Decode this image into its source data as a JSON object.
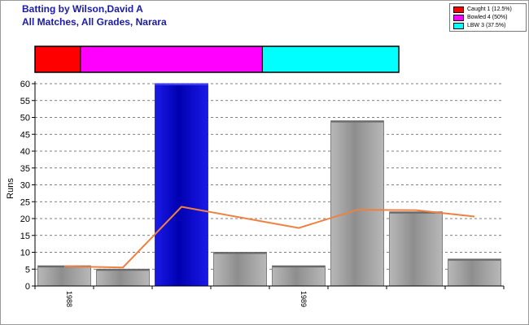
{
  "title_line1": "Batting by Wilson,David A",
  "title_line2": "All Matches, All Grades, Narara",
  "legend": [
    {
      "label": "Caught 1 (12.5%)",
      "color": "#ff0000"
    },
    {
      "label": "Bowled 4 (50%)",
      "color": "#ff00ff"
    },
    {
      "label": "LBW 3 (37.5%)",
      "color": "#00ffff"
    }
  ],
  "chart_data": [
    {
      "type": "bar",
      "title": "Batting by Wilson,David A",
      "subtitle": "All Matches, All Grades, Narara",
      "ylabel": "Runs",
      "xlabel": "",
      "ylim": [
        0,
        60
      ],
      "yticks": [
        0,
        5,
        10,
        15,
        20,
        25,
        30,
        35,
        40,
        45,
        50,
        55,
        60
      ],
      "grid": "horizontal dashed",
      "x_tick_labels": [
        {
          "index": 0,
          "label": "1988"
        },
        {
          "index": 4,
          "label": "1989"
        }
      ],
      "values": [
        6,
        5,
        60,
        10,
        6,
        49,
        22,
        8
      ],
      "bar_colors": [
        "#a8a8a8",
        "#a8a8a8",
        "#0000ff",
        "#a8a8a8",
        "#a8a8a8",
        "#a8a8a8",
        "#a8a8a8",
        "#a8a8a8"
      ],
      "highlight_index": 2,
      "line_series": {
        "color": "#f08040",
        "values": [
          5.8,
          5.5,
          23.5,
          null,
          17.2,
          22.6,
          22.5,
          20.6
        ]
      }
    },
    {
      "type": "bar",
      "stacked": true,
      "orientation": "horizontal",
      "categories": [
        "Caught",
        "Bowled",
        "LBW"
      ],
      "values": [
        1,
        4,
        3
      ],
      "percent": [
        12.5,
        50,
        37.5
      ],
      "colors": [
        "#ff0000",
        "#ff00ff",
        "#00ffff"
      ]
    }
  ]
}
